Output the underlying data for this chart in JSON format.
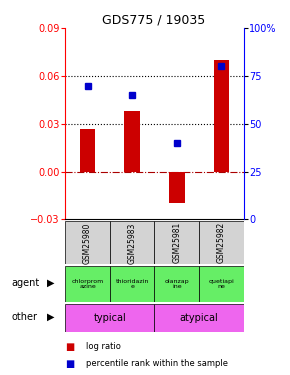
{
  "title": "GDS775 / 19035",
  "samples": [
    "GSM25980",
    "GSM25983",
    "GSM25981",
    "GSM25982"
  ],
  "log_ratios": [
    0.027,
    0.038,
    -0.02,
    0.07
  ],
  "percentile_ranks": [
    70,
    65,
    40,
    80
  ],
  "agents": [
    "chlorprom\nazine",
    "thioridazin\ne",
    "olanzap\nine",
    "quetiapi\nne"
  ],
  "bar_color": "#CC0000",
  "marker_color": "#0000CC",
  "ylim_left": [
    -0.03,
    0.09
  ],
  "ylim_right": [
    0,
    100
  ],
  "yticks_left": [
    -0.03,
    0,
    0.03,
    0.06,
    0.09
  ],
  "yticks_right": [
    0,
    25,
    50,
    75,
    100
  ],
  "hlines": [
    0.06,
    0.03
  ],
  "background_color": "#ffffff",
  "gray_color": "#d3d3d3",
  "green_color": "#66EE66",
  "magenta_color": "#EE66EE"
}
